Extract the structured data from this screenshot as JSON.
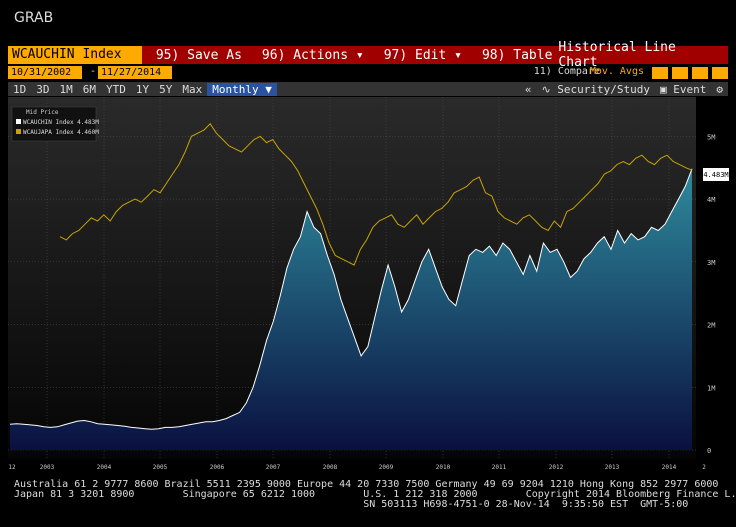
{
  "header": {
    "grab_label": "GRAB"
  },
  "toolbar": {
    "ticker": "WCAUCHIN Index",
    "menu": [
      {
        "num": "95)",
        "label": "Save As"
      },
      {
        "num": "96)",
        "label": "Actions",
        "dropdown": true
      },
      {
        "num": "97)",
        "label": "Edit",
        "dropdown": true
      },
      {
        "num": "98)",
        "label": "Table"
      }
    ],
    "title": "Historical Line Chart"
  },
  "dates": {
    "start": "10/31/2002",
    "separator": "-",
    "end": "11/27/2014",
    "compare": "11) Compare",
    "mov_avgs": "Mov. Avgs"
  },
  "range_bar": {
    "ranges": [
      "1D",
      "3D",
      "1M",
      "6M",
      "YTD",
      "1Y",
      "5Y",
      "Max"
    ],
    "frequency": "Monthly",
    "collapse": "«",
    "security_study": "Security/Study",
    "event": "Event"
  },
  "colors": {
    "series1": "#ffffff",
    "series2": "#c8a400",
    "area_top": "#2e8a9c",
    "area_bottom": "#0a1040"
  },
  "chart_data": {
    "type": "area",
    "legend_title": "Mid Price",
    "legend_position": "top-left",
    "series": [
      {
        "name": "WCAUCHIN Index 4.483M",
        "last_label": "4.483M",
        "values": [
          0.41,
          0.42,
          0.41,
          0.4,
          0.39,
          0.37,
          0.36,
          0.37,
          0.4,
          0.43,
          0.46,
          0.47,
          0.45,
          0.42,
          0.41,
          0.4,
          0.39,
          0.38,
          0.36,
          0.35,
          0.34,
          0.33,
          0.34,
          0.36,
          0.36,
          0.37,
          0.39,
          0.41,
          0.43,
          0.45,
          0.45,
          0.47,
          0.5,
          0.55,
          0.6,
          0.75,
          1.0,
          1.35,
          1.75,
          2.05,
          2.45,
          2.9,
          3.2,
          3.4,
          3.8,
          3.55,
          3.45,
          3.1,
          2.8,
          2.4,
          2.1,
          1.8,
          1.5,
          1.65,
          2.1,
          2.55,
          2.95,
          2.6,
          2.2,
          2.4,
          2.7,
          3.0,
          3.2,
          2.9,
          2.6,
          2.4,
          2.3,
          2.7,
          3.1,
          3.2,
          3.15,
          3.25,
          3.1,
          3.3,
          3.2,
          3.0,
          2.8,
          3.1,
          2.85,
          3.3,
          3.15,
          3.2,
          3.0,
          2.75,
          2.85,
          3.05,
          3.15,
          3.3,
          3.4,
          3.2,
          3.5,
          3.3,
          3.45,
          3.35,
          3.4,
          3.55,
          3.5,
          3.6,
          3.8,
          4.0,
          4.2,
          4.483
        ]
      },
      {
        "name": "WCAUJAPA Index 4.460M",
        "values": [
          3.4,
          3.35,
          3.45,
          3.5,
          3.6,
          3.7,
          3.65,
          3.75,
          3.65,
          3.8,
          3.9,
          3.95,
          4.0,
          3.95,
          4.05,
          4.15,
          4.1,
          4.25,
          4.4,
          4.55,
          4.75,
          5.0,
          5.05,
          5.1,
          5.2,
          5.05,
          4.95,
          4.85,
          4.8,
          4.75,
          4.85,
          4.95,
          5.0,
          4.9,
          4.95,
          4.8,
          4.7,
          4.6,
          4.45,
          4.25,
          4.05,
          3.85,
          3.6,
          3.3,
          3.1,
          3.05,
          3.0,
          2.95,
          3.2,
          3.35,
          3.55,
          3.65,
          3.7,
          3.75,
          3.6,
          3.55,
          3.65,
          3.75,
          3.6,
          3.7,
          3.8,
          3.85,
          3.95,
          4.1,
          4.15,
          4.2,
          4.3,
          4.35,
          4.1,
          4.05,
          3.8,
          3.7,
          3.65,
          3.6,
          3.7,
          3.75,
          3.65,
          3.55,
          3.5,
          3.65,
          3.55,
          3.8,
          3.85,
          3.95,
          4.05,
          4.15,
          4.25,
          4.4,
          4.45,
          4.55,
          4.6,
          4.55,
          4.65,
          4.7,
          4.6,
          4.55,
          4.65,
          4.7,
          4.6,
          4.55,
          4.5,
          4.46
        ]
      }
    ],
    "x_labels": [
      "12",
      "2003",
      "2004",
      "2005",
      "2006",
      "2007",
      "2008",
      "2009",
      "2010",
      "2011",
      "2012",
      "2013",
      "2014",
      "2"
    ],
    "y_ticks": [
      "0",
      "1M",
      "2M",
      "3M",
      "4M",
      "5M"
    ],
    "ylim": [
      0,
      5.5
    ],
    "grid": true
  },
  "footer": {
    "line1": "Australia 61 2 9777 8600 Brazil 5511 2395 9000 Europe 44 20 7330 7500 Germany 49 69 9204 1210 Hong Kong 852 2977 6000",
    "line2": "Japan 81 3 3201 8900        Singapore 65 6212 1000        U.S. 1 212 318 2000        Copyright 2014 Bloomberg Finance L.P.",
    "line3": "                                                          SN 503113 H698-4751-0 28-Nov-14  9:35:50 EST  GMT-5:00"
  }
}
